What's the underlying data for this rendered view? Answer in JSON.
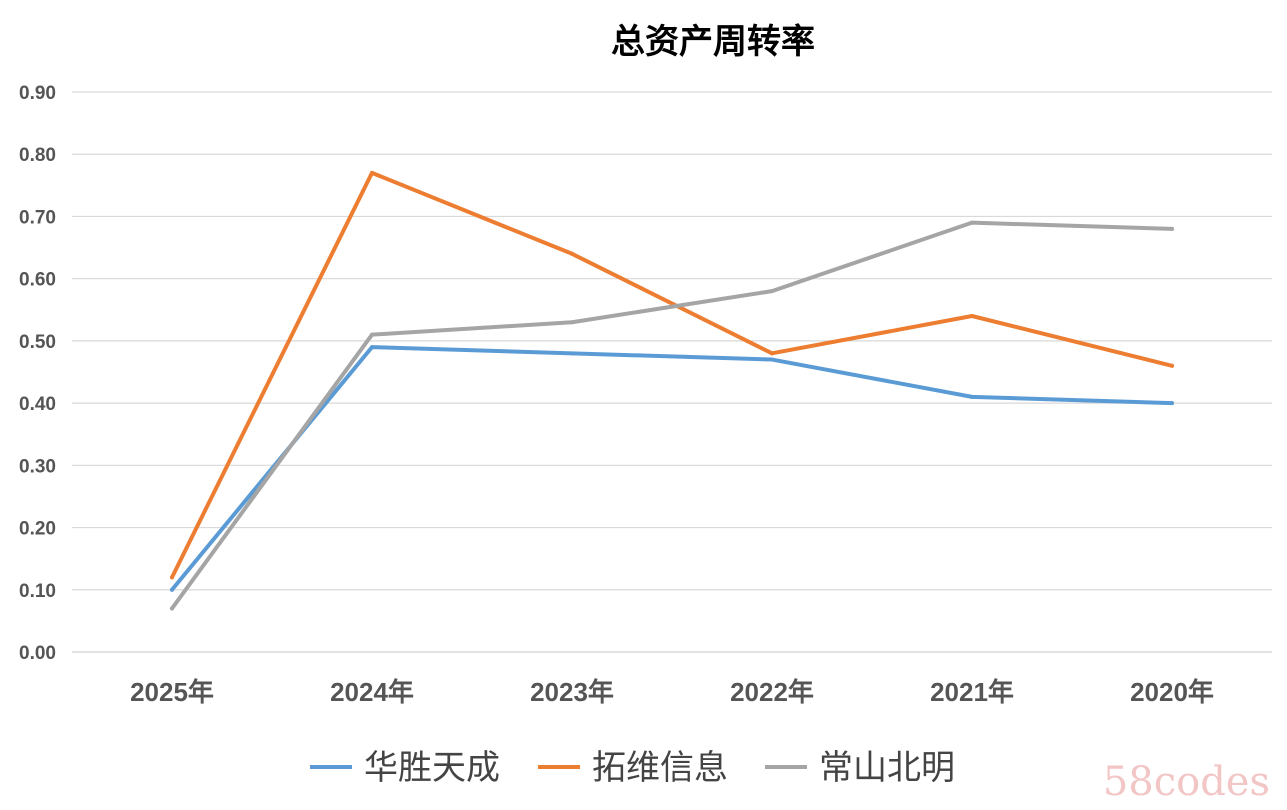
{
  "chart_data": {
    "type": "line",
    "title": "总资产周转率",
    "categories": [
      "2025年",
      "2024年",
      "2023年",
      "2022年",
      "2021年",
      "2020年"
    ],
    "ylim": [
      0,
      0.9
    ],
    "yticks": [
      "0.00",
      "0.10",
      "0.20",
      "0.30",
      "0.40",
      "0.50",
      "0.60",
      "0.70",
      "0.80",
      "0.90"
    ],
    "grid": true,
    "legend_position": "bottom",
    "series": [
      {
        "name": "华胜天成",
        "color": "#5b9bd5",
        "values": [
          0.1,
          0.49,
          0.48,
          0.47,
          0.41,
          0.4
        ]
      },
      {
        "name": "拓维信息",
        "color": "#ed7d31",
        "values": [
          0.12,
          0.77,
          0.64,
          0.48,
          0.54,
          0.46
        ]
      },
      {
        "name": "常山北明",
        "color": "#a5a5a5",
        "values": [
          0.07,
          0.51,
          0.53,
          0.58,
          0.69,
          0.68
        ]
      }
    ]
  },
  "watermark": "58codes"
}
